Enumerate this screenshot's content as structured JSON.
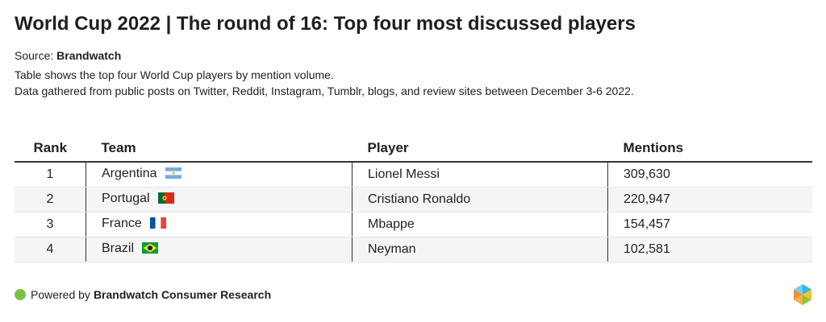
{
  "title": "World Cup 2022 | The round of 16: Top four most discussed players",
  "source_label": "Source:",
  "source_name": "Brandwatch",
  "description_line1": "Table shows the top four World Cup players by mention volume.",
  "description_line2": "Data gathered from public posts on Twitter, Reddit, Instagram, Tumblr, blogs, and review sites between December 3-6 2022.",
  "chart_data": {
    "type": "table",
    "columns": [
      "Rank",
      "Team",
      "Player",
      "Mentions"
    ],
    "rows": [
      {
        "rank": "1",
        "team": "Argentina",
        "flag": "flag-argentina",
        "player": "Lionel Messi",
        "mentions": "309,630"
      },
      {
        "rank": "2",
        "team": "Portugal",
        "flag": "flag-portugal",
        "player": "Cristiano Ronaldo",
        "mentions": "220,947"
      },
      {
        "rank": "3",
        "team": "France",
        "flag": "flag-france",
        "player": "Mbappe",
        "mentions": "154,457"
      },
      {
        "rank": "4",
        "team": "Brazil",
        "flag": "flag-brazil",
        "player": "Neyman",
        "mentions": "102,581"
      }
    ]
  },
  "footer": {
    "prefix": "Powered by",
    "brand": "Brandwatch Consumer Research",
    "dot_color": "#7dc142"
  }
}
